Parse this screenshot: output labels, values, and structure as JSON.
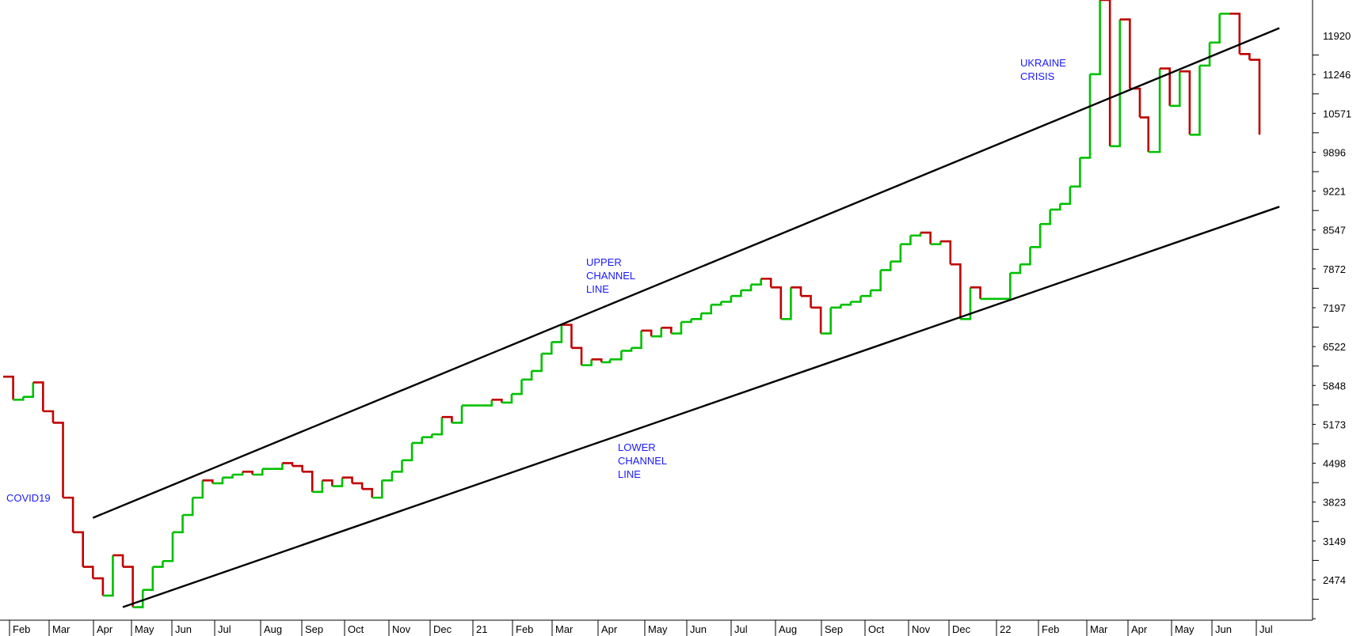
{
  "chart_data": {
    "type": "line",
    "title": "",
    "xlabel": "",
    "ylabel": "",
    "ylim": [
      1930,
      13000
    ],
    "grid": false,
    "colors": {
      "up": "#00c000",
      "down": "#c00000",
      "channel": "#000000",
      "annotation": "#1a1aff"
    },
    "y_ticks": [
      "11920",
      "11246",
      "10571",
      "9896",
      "9221",
      "8547",
      "7872",
      "7197",
      "6522",
      "5848",
      "5173",
      "4498",
      "3823",
      "3149",
      "2474"
    ],
    "x_ticks": [
      "Feb",
      "Mar",
      "Apr",
      "May",
      "Jun",
      "Jul",
      "Aug",
      "Sep",
      "Oct",
      "Nov",
      "Dec",
      "21",
      "Feb",
      "Mar",
      "Apr",
      "May",
      "Jun",
      "Jul",
      "Aug",
      "Sep",
      "Oct",
      "Nov",
      "Dec",
      "22",
      "Feb",
      "Mar",
      "Apr",
      "May",
      "Jun",
      "Jul"
    ],
    "series": [
      {
        "x": [
          "2020-01-31",
          "2020-02-07",
          "2020-02-14",
          "2020-02-21",
          "2020-02-28",
          "2020-03-06",
          "2020-03-13",
          "2020-03-20",
          "2020-03-27",
          "2020-04-03",
          "2020-04-10",
          "2020-04-17",
          "2020-04-24",
          "2020-05-01",
          "2020-05-08",
          "2020-05-15",
          "2020-05-22",
          "2020-05-29",
          "2020-06-05",
          "2020-06-12",
          "2020-06-19",
          "2020-06-26",
          "2020-07-03",
          "2020-07-10",
          "2020-07-17",
          "2020-07-24",
          "2020-07-31",
          "2020-08-07",
          "2020-08-14",
          "2020-08-21",
          "2020-08-28",
          "2020-09-04",
          "2020-09-11",
          "2020-09-18",
          "2020-09-25",
          "2020-10-02",
          "2020-10-09",
          "2020-10-16",
          "2020-10-23",
          "2020-10-30",
          "2020-11-06",
          "2020-11-13",
          "2020-11-20",
          "2020-11-27",
          "2020-12-04",
          "2020-12-11",
          "2020-12-18",
          "2021-01-08",
          "2021-01-15",
          "2021-01-22",
          "2021-01-29",
          "2021-02-05",
          "2021-02-12",
          "2021-02-19",
          "2021-02-26",
          "2021-03-05",
          "2021-03-12",
          "2021-03-19",
          "2021-03-26",
          "2021-04-01",
          "2021-04-09",
          "2021-04-16",
          "2021-04-23",
          "2021-04-30",
          "2021-05-07",
          "2021-05-14",
          "2021-05-21",
          "2021-05-28",
          "2021-06-04",
          "2021-06-11",
          "2021-06-18",
          "2021-06-25",
          "2021-07-02",
          "2021-07-09",
          "2021-07-16",
          "2021-07-23",
          "2021-07-30",
          "2021-08-06",
          "2021-08-13",
          "2021-08-20",
          "2021-08-27",
          "2021-09-03",
          "2021-09-10",
          "2021-09-17",
          "2021-09-24",
          "2021-10-01",
          "2021-10-08",
          "2021-10-15",
          "2021-10-22",
          "2021-10-29",
          "2021-11-05",
          "2021-11-12",
          "2021-11-19",
          "2021-11-26",
          "2021-12-03",
          "2021-12-10",
          "2021-12-17",
          "2022-01-07",
          "2022-01-14",
          "2022-01-21",
          "2022-01-28",
          "2022-02-04",
          "2022-02-11",
          "2022-02-18",
          "2022-02-25",
          "2022-03-04",
          "2022-03-11",
          "2022-03-18",
          "2022-03-25",
          "2022-04-01",
          "2022-04-08",
          "2022-04-14",
          "2022-04-22",
          "2022-04-29",
          "2022-05-06",
          "2022-05-13",
          "2022-05-20",
          "2022-05-27",
          "2022-06-03",
          "2022-06-10",
          "2022-06-17",
          "2022-06-24",
          "2022-07-01"
        ],
        "values": [
          6000,
          5600,
          5650,
          5900,
          5400,
          5200,
          3900,
          3300,
          2700,
          2500,
          2200,
          2900,
          2700,
          2000,
          2300,
          2700,
          2800,
          3300,
          3600,
          3900,
          4200,
          4150,
          4250,
          4300,
          4350,
          4300,
          4400,
          4400,
          4500,
          4450,
          4350,
          4000,
          4200,
          4100,
          4250,
          4150,
          4050,
          3900,
          4200,
          4350,
          4550,
          4850,
          4950,
          5000,
          5300,
          5200,
          5500,
          5600,
          5550,
          5700,
          5950,
          6100,
          6400,
          6600,
          6900,
          6500,
          6200,
          6300,
          6250,
          6300,
          6450,
          6500,
          6800,
          6700,
          6850,
          6750,
          6950,
          7000,
          7100,
          7250,
          7300,
          7400,
          7500,
          7600,
          7700,
          7550,
          7000,
          7550,
          7400,
          7200,
          6750,
          7200,
          7250,
          7300,
          7400,
          7500,
          7850,
          8000,
          8300,
          8450,
          8500,
          8300,
          8350,
          7950,
          7000,
          7550,
          7350,
          7800,
          7950,
          8250,
          8650,
          8900,
          9000,
          9300,
          9800,
          11250,
          12800,
          10000,
          12200,
          11000,
          10500,
          9900,
          11350,
          10700,
          11300,
          10200,
          11400,
          11800,
          12300,
          12300,
          11600,
          11500,
          10200
        ]
      }
    ],
    "channel_lines": [
      {
        "label": "UPPER CHANNEL LINE",
        "start": {
          "x": "2020-04-03",
          "y": 3550
        },
        "end": {
          "x": "2022-07-15",
          "y": 12050
        }
      },
      {
        "label": "LOWER CHANNEL LINE",
        "start": {
          "x": "2020-04-24",
          "y": 2000
        },
        "end": {
          "x": "2022-07-15",
          "y": 8950
        }
      }
    ],
    "annotations": [
      {
        "lines": [
          "COVID19"
        ]
      },
      {
        "lines": [
          "UPPER",
          "CHANNEL",
          "LINE"
        ]
      },
      {
        "lines": [
          "LOWER",
          "CHANNEL",
          "LINE"
        ]
      },
      {
        "lines": [
          "UKRAINE",
          "CRISIS"
        ]
      }
    ]
  }
}
